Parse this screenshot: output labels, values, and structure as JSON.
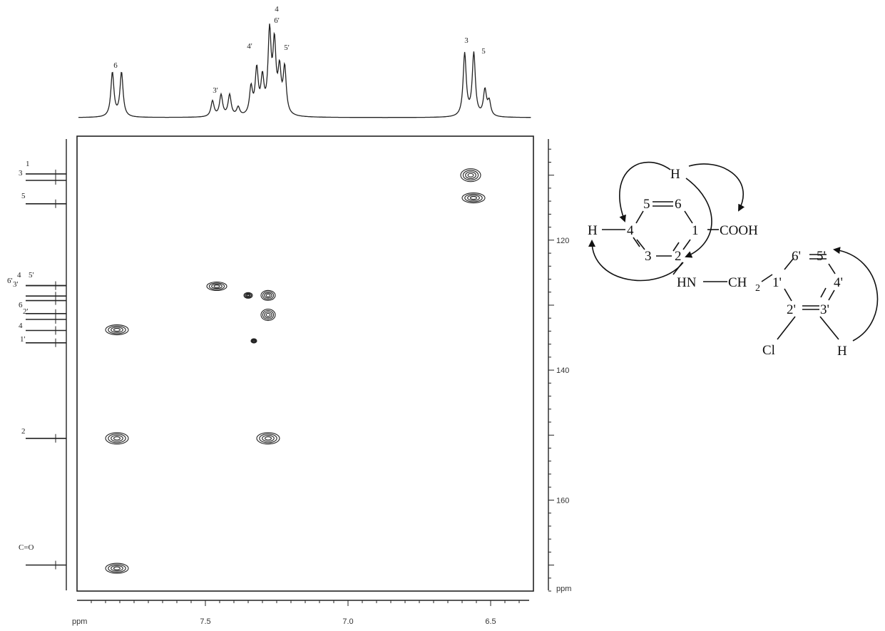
{
  "chart_data": {
    "type": "heatmap",
    "subtype": "2D NMR HMBC contour plot",
    "title": "",
    "x_axis": {
      "label": "ppm",
      "range": [
        7.95,
        6.35
      ],
      "reversed": true,
      "ticks": [
        7.5,
        7.0,
        6.5
      ],
      "tick_labels": [
        "7.5",
        "7.0",
        "6.5"
      ]
    },
    "y_axis": {
      "label": "ppm",
      "range": [
        104,
        174
      ],
      "reversed": true,
      "ticks": [
        120,
        140,
        160
      ],
      "tick_labels": [
        "120",
        "140",
        "160"
      ]
    },
    "proton_spectrum": {
      "peaks": [
        {
          "label": "6",
          "ppm": 7.81
        },
        {
          "label": "3'",
          "ppm": 7.44
        },
        {
          "label": "4'",
          "ppm": 7.33
        },
        {
          "label": "4",
          "ppm": 7.27
        },
        {
          "label": "6'",
          "ppm": 7.27
        },
        {
          "label": "5'",
          "ppm": 7.23
        },
        {
          "label": "3",
          "ppm": 6.58
        },
        {
          "label": "5",
          "ppm": 6.54
        }
      ]
    },
    "carbon_spectrum": {
      "peaks": [
        {
          "label": "1",
          "ppm": 109.8
        },
        {
          "label": "3",
          "ppm": 110.8
        },
        {
          "label": "5",
          "ppm": 114.4
        },
        {
          "label": "4",
          "ppm": 127.0
        },
        {
          "label": "5'",
          "ppm": 127.0
        },
        {
          "label": "6'",
          "ppm": 128.6
        },
        {
          "label": "3'",
          "ppm": 129.3
        },
        {
          "label": "6",
          "ppm": 131.3
        },
        {
          "label": "2'",
          "ppm": 132.2
        },
        {
          "label": "4",
          "ppm": 133.9
        },
        {
          "label": "1'",
          "ppm": 135.8
        },
        {
          "label": "2",
          "ppm": 150.5
        },
        {
          "label": "C=O",
          "ppm": 170.0
        }
      ]
    },
    "cross_peaks": [
      {
        "h": 6.57,
        "c": 110.0
      },
      {
        "h": 6.56,
        "c": 113.5
      },
      {
        "h": 7.46,
        "c": 127.1
      },
      {
        "h": 7.35,
        "c": 128.5
      },
      {
        "h": 7.28,
        "c": 128.5
      },
      {
        "h": 7.28,
        "c": 131.5
      },
      {
        "h": 7.33,
        "c": 135.5
      },
      {
        "h": 7.81,
        "c": 133.8
      },
      {
        "h": 7.81,
        "c": 150.5
      },
      {
        "h": 7.28,
        "c": 150.5
      },
      {
        "h": 7.81,
        "c": 170.5
      }
    ]
  },
  "structure": {
    "atom_labels": {
      "ring1": [
        "1",
        "2",
        "3",
        "4",
        "5",
        "6"
      ],
      "ring2": [
        "1'",
        "2'",
        "3'",
        "4'",
        "5'",
        "6'"
      ]
    },
    "groups": {
      "cooh": "COOH",
      "nh": "HN",
      "ch": "CH",
      "sub2": "2",
      "cl": "Cl",
      "h_top": "H",
      "h_left": "H",
      "h_bottom": "H"
    }
  }
}
